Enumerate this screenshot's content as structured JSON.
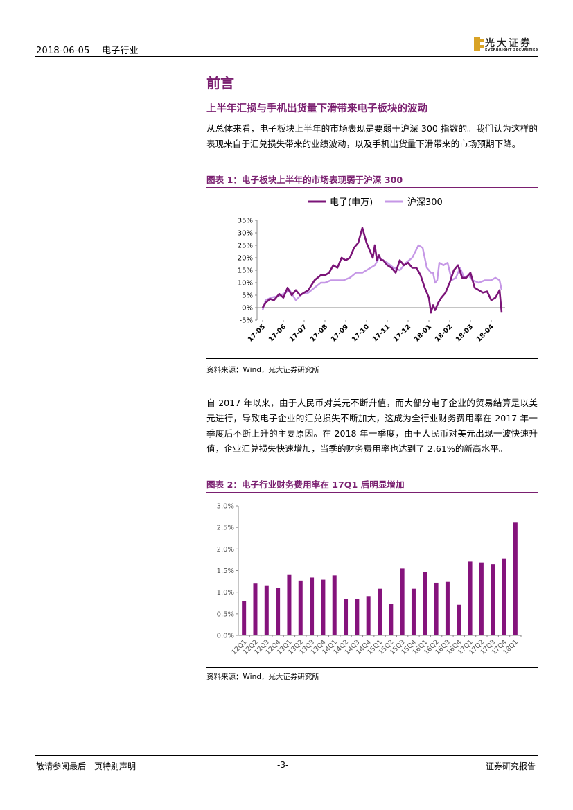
{
  "header": {
    "date_industry": "2018-06-05　 电子行业"
  },
  "logo": {
    "cn": "光大证券",
    "en": "EVERBRIGHT SECURITIES",
    "brand_color": "#d9a326"
  },
  "section": {
    "title": "前言",
    "subtitle": "上半年汇损与手机出货量下滑带来电子板块的波动",
    "para1": "从总体来看，电子板块上半年的市场表现是要弱于沪深 300 指数的。我们认为这样的表现来自于汇兑损失带来的业绩波动，以及手机出货量下滑带来的市场预期下降。",
    "para2": "自 2017 年以来，由于人民币对美元不断升值，而大部分电子企业的贸易结算是以美元进行，导致电子企业的汇兑损失不断加大，这成为全行业财务费用率在 2017 年一季度后不断上升的主要原因。在 2018 年一季度，由于人民币对美元出现一波快速升值，企业汇兑损失快速增加，当季的财务费用率也达到了 2.61%的新高水平。"
  },
  "figure1": {
    "title": "图表 1：电子板块上半年的市场表现弱于沪深 300",
    "source": "资料来源：Wind，光大证券研究所"
  },
  "figure2": {
    "title": "图表 2：电子行业财务费用率在 17Q1 后明显增加",
    "source": "资料来源：Wind，光大证券研究所"
  },
  "footer": {
    "left": "敬请参阅最后一页特别声明",
    "center": "-3-",
    "right": "证券研究报告"
  },
  "colors": {
    "accent": "#7a1f70",
    "series1": "#7b1478",
    "series2": "#c597e6"
  },
  "chart_data": [
    {
      "type": "line",
      "title": "",
      "x_ticks": [
        "17-05",
        "17-06",
        "17-07",
        "17-08",
        "17-09",
        "17-10",
        "17-11",
        "17-12",
        "18-01",
        "18-02",
        "18-03",
        "18-04"
      ],
      "ylim": [
        -5,
        35
      ],
      "y_ticks": [
        "35%",
        "30%",
        "25%",
        "20%",
        "15%",
        "10%",
        "5%",
        "0%",
        "-5%"
      ],
      "legend_position": "top",
      "series": [
        {
          "name": "电子(申万)",
          "color": "#7b1478",
          "x": [
            0,
            0.15,
            0.35,
            0.55,
            0.8,
            1.0,
            1.2,
            1.4,
            1.6,
            1.8,
            2.0,
            2.2,
            2.5,
            2.8,
            3.0,
            3.2,
            3.4,
            3.6,
            3.8,
            4.0,
            4.2,
            4.4,
            4.6,
            4.8,
            5.0,
            5.2,
            5.3,
            5.4,
            5.5,
            5.6,
            5.7,
            5.8,
            5.9,
            6.0,
            6.2,
            6.4,
            6.6,
            6.8,
            7.0,
            7.2,
            7.4,
            7.6,
            7.8,
            8.0,
            8.1,
            8.2,
            8.3,
            8.45,
            8.6,
            8.8,
            9.0,
            9.2,
            9.4,
            9.6,
            9.8,
            10.0,
            10.2,
            10.4,
            10.6,
            10.8,
            11.0,
            11.2,
            11.4,
            11.5
          ],
          "y": [
            0,
            2,
            3.5,
            3,
            5.5,
            4,
            8,
            5,
            7,
            5,
            6,
            7,
            11,
            13,
            13,
            14,
            17,
            16,
            20,
            19,
            20,
            24,
            26,
            32,
            26,
            22,
            20,
            25,
            19,
            21,
            19,
            19,
            18,
            17,
            16,
            14,
            19,
            17,
            18,
            16,
            16,
            13,
            8,
            4,
            -2,
            1,
            -1,
            2,
            4,
            6,
            10,
            15,
            17,
            12,
            12,
            14,
            8,
            7,
            6,
            6.5,
            3,
            4,
            7,
            -2
          ]
        },
        {
          "name": "沪深300",
          "color": "#c597e6",
          "x": [
            0,
            0.15,
            0.4,
            0.7,
            1.0,
            1.3,
            1.6,
            1.9,
            2.2,
            2.5,
            2.8,
            3.0,
            3.3,
            3.6,
            3.9,
            4.2,
            4.5,
            4.8,
            5.0,
            5.2,
            5.4,
            5.6,
            5.8,
            6.0,
            6.3,
            6.6,
            6.9,
            7.2,
            7.5,
            7.7,
            7.9,
            8.1,
            8.2,
            8.3,
            8.4,
            8.5,
            8.7,
            8.9,
            9.1,
            9.3,
            9.5,
            9.7,
            9.9,
            10.1,
            10.4,
            10.7,
            11.0,
            11.2,
            11.4,
            11.5
          ],
          "y": [
            -1,
            3,
            4,
            4.5,
            5.5,
            7,
            3,
            5.5,
            6,
            8,
            10,
            10,
            11,
            11,
            11,
            12,
            14,
            14,
            15,
            16,
            17,
            20,
            19,
            18,
            16,
            15,
            18,
            20,
            25,
            24,
            16,
            14,
            14,
            10,
            11,
            18,
            17,
            18,
            11,
            12,
            16,
            12,
            13,
            11,
            10,
            11,
            11,
            12,
            11,
            7
          ]
        }
      ]
    },
    {
      "type": "bar",
      "title": "",
      "ylim": [
        0,
        3.0
      ],
      "y_ticks": [
        "3.0%",
        "2.5%",
        "2.0%",
        "1.5%",
        "1.0%",
        "0.5%",
        "0.0%"
      ],
      "categories": [
        "12Q1",
        "12Q2",
        "12Q3",
        "12Q4",
        "13Q1",
        "13Q2",
        "13Q3",
        "13Q4",
        "14Q1",
        "14Q2",
        "14Q3",
        "14Q4",
        "15Q1",
        "15Q2",
        "15Q3",
        "15Q4",
        "16Q1",
        "16Q2",
        "16Q3",
        "16Q4",
        "17Q1",
        "17Q2",
        "17Q3",
        "17Q4",
        "18Q1"
      ],
      "values": [
        0.8,
        1.2,
        1.16,
        1.1,
        1.4,
        1.27,
        1.34,
        1.29,
        1.39,
        0.85,
        0.85,
        0.91,
        1.08,
        0.73,
        1.55,
        1.08,
        1.46,
        1.22,
        1.24,
        0.71,
        1.71,
        1.69,
        1.65,
        1.77,
        2.61
      ],
      "color": "#85137c"
    }
  ]
}
